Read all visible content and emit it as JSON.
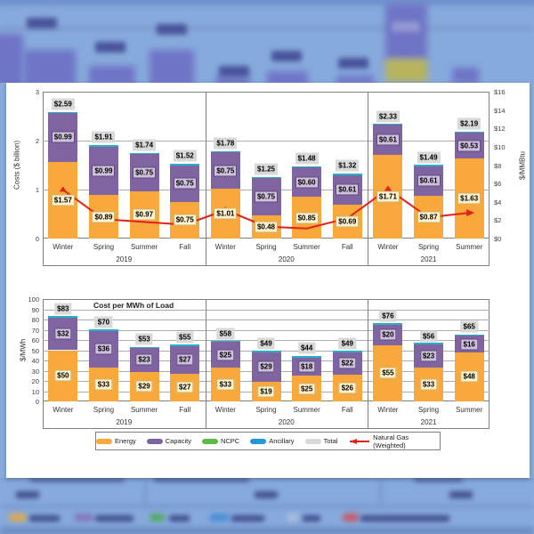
{
  "colors": {
    "energy": "#F9A83C",
    "capacity": "#8064A2",
    "ncpc": "#5DBB46",
    "ancillary": "#29AEC9",
    "total_label_bg": "#D9D9D9",
    "gas_line": "#E32119",
    "energy_label_bg": "#FDF2CE",
    "capacity_label_bg": "#CCC0DA"
  },
  "legend": {
    "items": [
      {
        "label": "Energy",
        "color": "#F9A83C",
        "type": "swatch"
      },
      {
        "label": "Capacity",
        "color": "#8064A2",
        "type": "swatch"
      },
      {
        "label": "NCPC",
        "color": "#5DBB46",
        "type": "swatch"
      },
      {
        "label": "Ancillary",
        "color": "#1F9CD8",
        "type": "swatch"
      },
      {
        "label": "Total",
        "color": "#D9D9D9",
        "type": "swatch"
      },
      {
        "label": "Natural Gas (Weighted)",
        "color": "#E32119",
        "type": "line-arrow"
      }
    ]
  },
  "chart_data": [
    {
      "type": "bar",
      "stacked": true,
      "title": "",
      "ylabel_left": "Costs ($ billion)",
      "ylabel_right": "$/MMBtu",
      "y_left": {
        "min": 0,
        "max": 3,
        "step": 1
      },
      "y_right": {
        "min": 0,
        "max": 16,
        "step": 2,
        "prefix": "$"
      },
      "groups": [
        {
          "year": "2019",
          "count": 4
        },
        {
          "year": "2020",
          "count": 4
        },
        {
          "year": "2021",
          "count": 3
        }
      ],
      "categories": [
        "Winter",
        "Spring",
        "Summer",
        "Fall",
        "Winter",
        "Spring",
        "Summer",
        "Fall",
        "Winter",
        "Spring",
        "Summer"
      ],
      "series": [
        {
          "name": "Energy",
          "values": [
            1.57,
            0.89,
            0.97,
            0.75,
            1.01,
            0.48,
            0.85,
            0.69,
            1.71,
            0.87,
            1.63
          ]
        },
        {
          "name": "Capacity",
          "values": [
            0.99,
            0.99,
            0.75,
            0.75,
            0.75,
            0.75,
            0.6,
            0.61,
            0.61,
            0.61,
            0.53
          ]
        },
        {
          "name": "Total",
          "values": [
            2.59,
            1.91,
            1.74,
            1.52,
            1.78,
            1.25,
            1.48,
            1.32,
            2.33,
            1.49,
            2.19
          ]
        }
      ],
      "line_series": {
        "name": "Natural Gas (Weighted)",
        "axis": "right",
        "unit": "$/MMBtu",
        "values_estimated": [
          5.3,
          2.1,
          1.8,
          1.5,
          3.1,
          1.3,
          1.1,
          2.2,
          5.4,
          2.3,
          2.8
        ]
      },
      "label_prefix": "$",
      "label_decimals": 2,
      "legend_position": "none",
      "grid": true
    },
    {
      "type": "bar",
      "stacked": true,
      "title": "Cost per MWh of Load",
      "ylabel_left": "$/MWh",
      "y_left": {
        "min": 0,
        "max": 100,
        "step": 10
      },
      "groups": [
        {
          "year": "2019",
          "count": 4
        },
        {
          "year": "2020",
          "count": 4
        },
        {
          "year": "2021",
          "count": 3
        }
      ],
      "categories": [
        "Winter",
        "Spring",
        "Summer",
        "Fall",
        "Winter",
        "Spring",
        "Summer",
        "Fall",
        "Winter",
        "Spring",
        "Summer"
      ],
      "series": [
        {
          "name": "Energy",
          "values": [
            50,
            33,
            29,
            27,
            33,
            19,
            25,
            26,
            55,
            33,
            48
          ]
        },
        {
          "name": "Capacity",
          "values": [
            32,
            36,
            23,
            27,
            25,
            29,
            18,
            22,
            20,
            23,
            16
          ]
        },
        {
          "name": "Total",
          "values": [
            83,
            70,
            53,
            55,
            58,
            49,
            44,
            49,
            76,
            56,
            65
          ]
        }
      ],
      "label_prefix": "$",
      "label_decimals": 0,
      "legend_position": "bottom",
      "grid": true
    }
  ]
}
